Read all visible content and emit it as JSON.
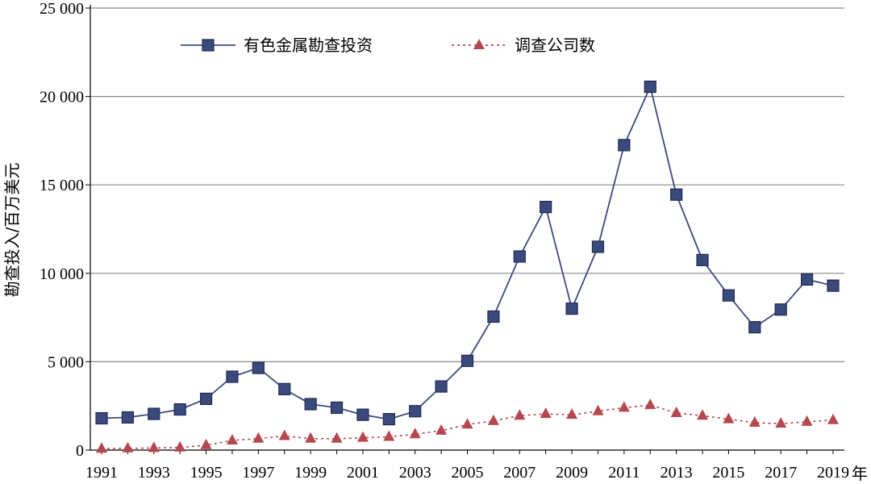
{
  "chart_data": {
    "type": "line",
    "x": [
      1991,
      1992,
      1993,
      1994,
      1995,
      1996,
      1997,
      1998,
      1999,
      2000,
      2001,
      2002,
      2003,
      2004,
      2005,
      2006,
      2007,
      2008,
      2009,
      2010,
      2011,
      2012,
      2013,
      2014,
      2015,
      2016,
      2017,
      2018,
      2019
    ],
    "x_tick_labels": [
      "1991",
      "1993",
      "1995",
      "1997",
      "1999",
      "2001",
      "2003",
      "2005",
      "2007",
      "2009",
      "2011",
      "2013",
      "2015",
      "2017",
      "2019"
    ],
    "x_unit": "年",
    "ylabel": "勘查投入/百万美元",
    "ylim": [
      0,
      25000
    ],
    "y_tick_labels": [
      "0",
      "5 000",
      "10 000",
      "15 000",
      "20 000",
      "25 000"
    ],
    "grid": "horizontal",
    "legend_position": "top-left",
    "series": [
      {
        "name": "有色金属勘查投资",
        "color": "#3b4a7c",
        "line_style": "solid",
        "marker": "square",
        "values": [
          1800,
          1850,
          2050,
          2300,
          2900,
          4150,
          4650,
          3450,
          2600,
          2400,
          2000,
          1750,
          2200,
          3600,
          5050,
          7550,
          10950,
          13750,
          8000,
          11500,
          17250,
          20550,
          14450,
          10750,
          8750,
          6950,
          7950,
          9650,
          9300
        ]
      },
      {
        "name": "调查公司数",
        "color": "#b5484e",
        "line_style": "dotted",
        "marker": "triangle",
        "values": [
          80,
          100,
          120,
          150,
          280,
          550,
          650,
          800,
          650,
          650,
          700,
          750,
          900,
          1100,
          1450,
          1650,
          1950,
          2050,
          2000,
          2200,
          2400,
          2550,
          2100,
          1950,
          1750,
          1550,
          1500,
          1600,
          1700
        ]
      }
    ]
  }
}
